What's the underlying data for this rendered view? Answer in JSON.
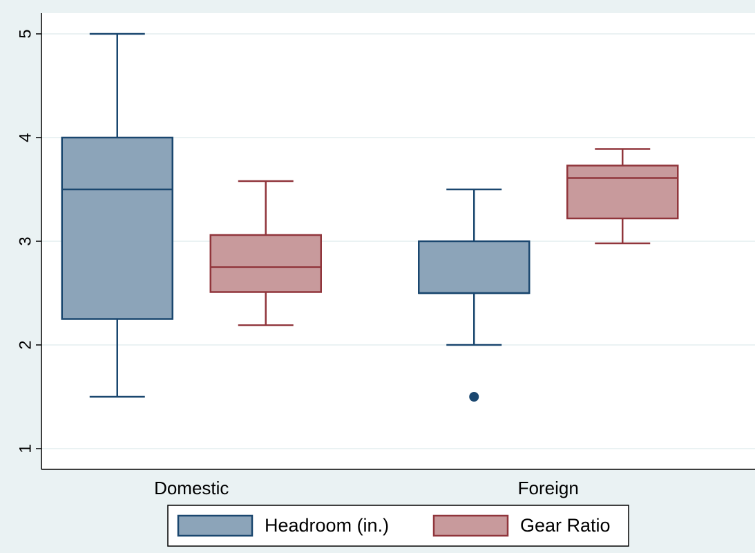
{
  "chart_data": {
    "type": "box",
    "categories": [
      "Domestic",
      "Foreign"
    ],
    "series": [
      {
        "name": "Headroom (in.)",
        "color": "#8ca4b9",
        "edge_color": "#1a476f",
        "values": [
          {
            "min": 1.5,
            "q1": 2.25,
            "median": 3.5,
            "q3": 4.0,
            "max": 5.0
          },
          {
            "min": 2.0,
            "q1": 2.5,
            "median": 2.5,
            "q3": 3.0,
            "max": 3.5
          }
        ],
        "outliers": [
          [],
          [
            1.5
          ]
        ]
      },
      {
        "name": "Gear Ratio",
        "color": "#c89a9c",
        "edge_color": "#90353b",
        "values": [
          {
            "min": 2.19,
            "q1": 2.51,
            "median": 2.75,
            "q3": 3.06,
            "max": 3.58
          },
          {
            "min": 2.98,
            "q1": 3.22,
            "median": 3.61,
            "q3": 3.73,
            "max": 3.89
          }
        ],
        "outliers": [
          [],
          []
        ]
      }
    ],
    "ylim": [
      0.8,
      5.2
    ],
    "yticks": [
      1,
      2,
      3,
      4,
      5
    ],
    "grid": true,
    "legend": "bottom"
  }
}
